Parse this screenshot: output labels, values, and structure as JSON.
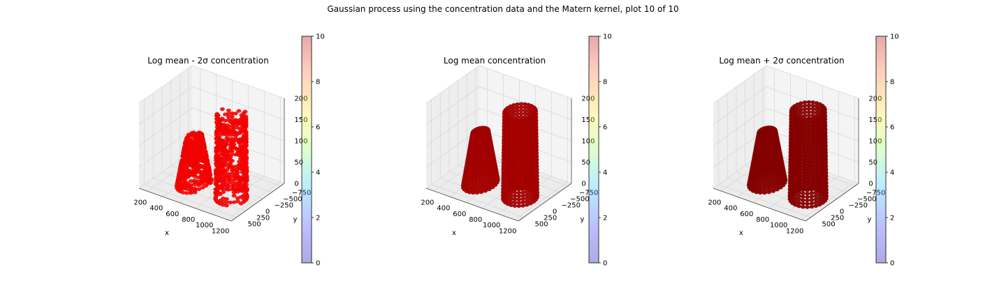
{
  "figure": {
    "suptitle": "Gaussian process using the  concentration data and the Matern kernel, plot 10 of 10"
  },
  "colors": {
    "lower_fill": "#ff0000",
    "lower_edge": "#cc0000",
    "mean_fill": "#aa0000",
    "mean_edge": "#8a0000",
    "upper_fill": "#8b0000",
    "upper_edge": "#6d0000",
    "grid": "#d8d8d8",
    "pane": "#f2f2f2"
  },
  "chart_data": [
    {
      "type": "scatter3d",
      "title": "Log mean - 2σ concentration",
      "xlabel": "x",
      "ylabel": "y",
      "zlabel": "",
      "x_ticks": [
        "200",
        "400",
        "600",
        "800",
        "1000",
        "1200"
      ],
      "y_ticks": [
        "500",
        "250",
        "0",
        "−250",
        "−500",
        "−750"
      ],
      "z_ticks": [
        "0",
        "50",
        "100",
        "150",
        "200"
      ],
      "xlim": [
        100,
        1250
      ],
      "ylim": [
        -850,
        650
      ],
      "zlim": [
        0,
        200
      ],
      "colorbar": {
        "ticks": [
          "0",
          "2",
          "4",
          "6",
          "8",
          "10"
        ],
        "range": [
          0,
          10
        ],
        "cmap": "jet"
      },
      "point_color": "lower",
      "blobs": [
        {
          "name": "left-plume",
          "x": [
            350,
            650
          ],
          "y": [
            -350,
            350
          ],
          "z": [
            0,
            110
          ]
        },
        {
          "name": "right-column",
          "x": [
            820,
            1130
          ],
          "y": [
            -250,
            300
          ],
          "z": [
            0,
            195
          ]
        }
      ]
    },
    {
      "type": "scatter3d",
      "title": "Log mean concentration",
      "xlabel": "x",
      "ylabel": "y",
      "zlabel": "",
      "x_ticks": [
        "200",
        "400",
        "600",
        "800",
        "1000",
        "1200"
      ],
      "y_ticks": [
        "500",
        "250",
        "0",
        "−250",
        "−500",
        "−750"
      ],
      "z_ticks": [
        "0",
        "50",
        "100",
        "150",
        "200"
      ],
      "xlim": [
        100,
        1250
      ],
      "ylim": [
        -850,
        650
      ],
      "zlim": [
        0,
        200
      ],
      "colorbar": {
        "ticks": [
          "0",
          "2",
          "4",
          "6",
          "8",
          "10"
        ],
        "range": [
          0,
          10
        ],
        "cmap": "jet"
      },
      "point_color": "mean",
      "blobs": [
        {
          "name": "left-plume",
          "x": [
            340,
            640
          ],
          "y": [
            -350,
            350
          ],
          "z": [
            0,
            120
          ]
        },
        {
          "name": "right-column",
          "x": [
            820,
            1150
          ],
          "y": [
            -300,
            300
          ],
          "z": [
            0,
            200
          ]
        }
      ]
    },
    {
      "type": "scatter3d",
      "title": "Log mean + 2σ concentration",
      "xlabel": "x",
      "ylabel": "y",
      "zlabel": "",
      "x_ticks": [
        "200",
        "400",
        "600",
        "800",
        "1000",
        "1200"
      ],
      "y_ticks": [
        "500",
        "250",
        "0",
        "−250",
        "−500",
        "−750"
      ],
      "z_ticks": [
        "0",
        "50",
        "100",
        "150",
        "200"
      ],
      "xlim": [
        100,
        1250
      ],
      "ylim": [
        -850,
        650
      ],
      "zlim": [
        0,
        200
      ],
      "colorbar": {
        "ticks": [
          "0",
          "2",
          "4",
          "6",
          "8",
          "10"
        ],
        "range": [
          0,
          10
        ],
        "cmap": "jet"
      },
      "point_color": "upper",
      "blobs": [
        {
          "name": "left-plume",
          "x": [
            320,
            650
          ],
          "y": [
            -350,
            350
          ],
          "z": [
            0,
            120
          ]
        },
        {
          "name": "right-column",
          "x": [
            820,
            1180
          ],
          "y": [
            -300,
            320
          ],
          "z": [
            0,
            205
          ]
        }
      ]
    }
  ]
}
